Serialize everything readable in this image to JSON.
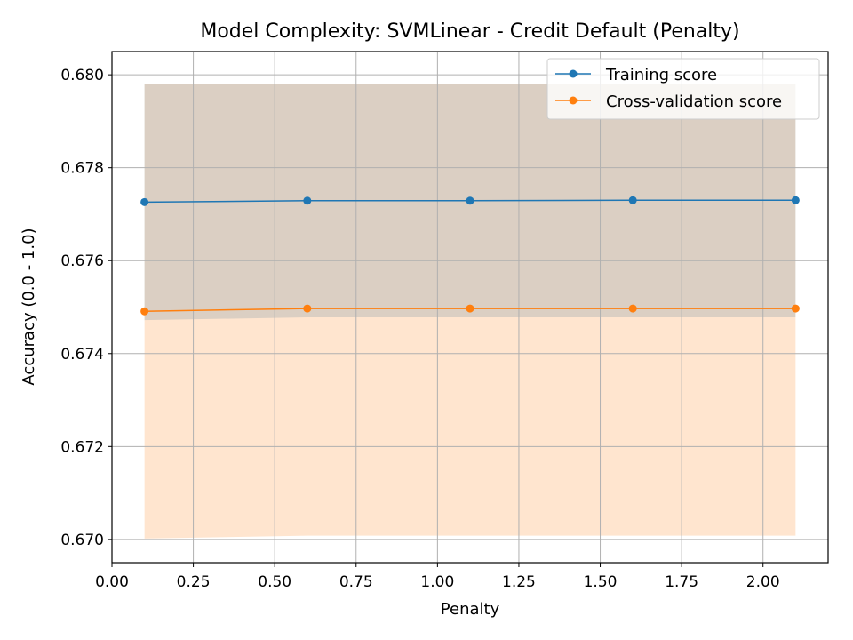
{
  "chart_data": {
    "type": "line",
    "title": "Model Complexity: SVMLinear - Credit Default (Penalty)",
    "xlabel": "Penalty",
    "ylabel": "Accuracy (0.0 - 1.0)",
    "xlim": [
      0.0,
      2.2
    ],
    "ylim": [
      0.6695,
      0.6805
    ],
    "xticks": [
      0.0,
      0.25,
      0.5,
      0.75,
      1.0,
      1.25,
      1.5,
      1.75,
      2.0
    ],
    "xtick_labels": [
      "0.00",
      "0.25",
      "0.50",
      "0.75",
      "1.00",
      "1.25",
      "1.50",
      "1.75",
      "2.00"
    ],
    "yticks": [
      0.67,
      0.672,
      0.674,
      0.676,
      0.678,
      0.68
    ],
    "ytick_labels": [
      "0.670",
      "0.672",
      "0.674",
      "0.676",
      "0.678",
      "0.680"
    ],
    "grid": true,
    "legend_position": "top-right",
    "x": [
      0.1,
      0.6,
      1.1,
      1.6,
      2.1
    ],
    "series": [
      {
        "name": "Training score",
        "color": "#1f77b4",
        "values": [
          0.67726,
          0.67729,
          0.67729,
          0.6773,
          0.6773
        ],
        "band_lower": [
          0.67472,
          0.67478,
          0.67478,
          0.67478,
          0.67478
        ],
        "band_upper": [
          0.6798,
          0.6798,
          0.6798,
          0.6798,
          0.6798
        ]
      },
      {
        "name": "Cross-validation score",
        "color": "#ff7f0e",
        "values": [
          0.67491,
          0.67497,
          0.67497,
          0.67497,
          0.67497
        ],
        "band_lower": [
          0.67002,
          0.67008,
          0.67008,
          0.67008,
          0.67008
        ],
        "band_upper": [
          0.6798,
          0.6798,
          0.6798,
          0.6798,
          0.6798
        ]
      }
    ]
  }
}
